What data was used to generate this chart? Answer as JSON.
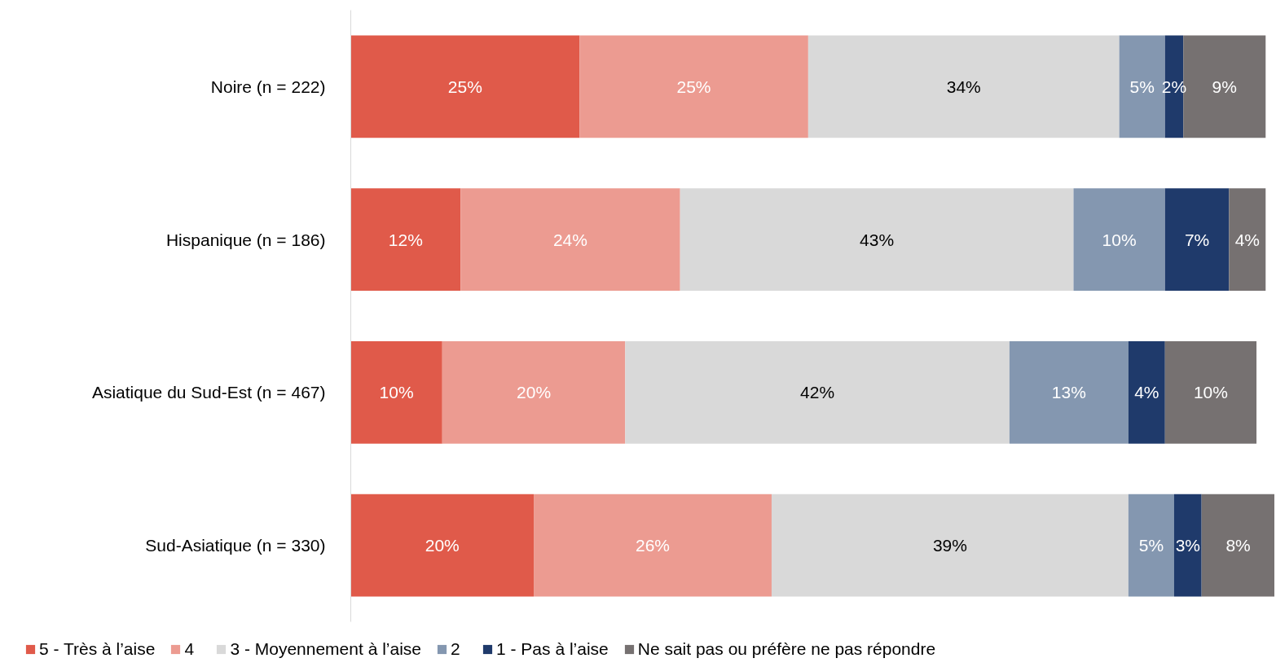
{
  "chart_data": {
    "type": "bar",
    "orientation": "horizontal",
    "stacked": true,
    "legend": "bottom",
    "grid": false,
    "categories": [
      "Noire (n = 222)",
      "Hispanique (n = 186)",
      "Asiatique du Sud-Est (n = 467)",
      "Sud-Asiatique (n = 330)"
    ],
    "series": [
      {
        "name": "5 - Très à l’aise",
        "color": "#e05a4a",
        "values": [
          25,
          12,
          10,
          20
        ],
        "value_labels": [
          "25%",
          "12%",
          "10%",
          "20%"
        ]
      },
      {
        "name": "4",
        "color": "#ec9b91",
        "values": [
          25,
          24,
          20,
          26
        ],
        "value_labels": [
          "25%",
          "24%",
          "20%",
          "26%"
        ]
      },
      {
        "name": "3 - Moyennement à l’aise",
        "color": "#d9d9d9",
        "values": [
          34,
          43,
          42,
          39
        ],
        "value_labels": [
          "34%",
          "43%",
          "42%",
          "39%"
        ]
      },
      {
        "name": "2",
        "color": "#8497b0",
        "values": [
          5,
          10,
          13,
          5
        ],
        "value_labels": [
          "5%",
          "10%",
          "13%",
          "5%"
        ]
      },
      {
        "name": "1 - Pas à l’aise",
        "color": "#1f3a6b",
        "values": [
          2,
          7,
          4,
          3
        ],
        "value_labels": [
          "2%",
          "7%",
          "4%",
          "3%"
        ]
      },
      {
        "name": "Ne sait pas ou préfère ne pas répondre",
        "color": "#767171",
        "values": [
          9,
          4,
          10,
          8
        ],
        "value_labels": [
          "9%",
          "4%",
          "10%",
          "8%"
        ]
      }
    ]
  }
}
